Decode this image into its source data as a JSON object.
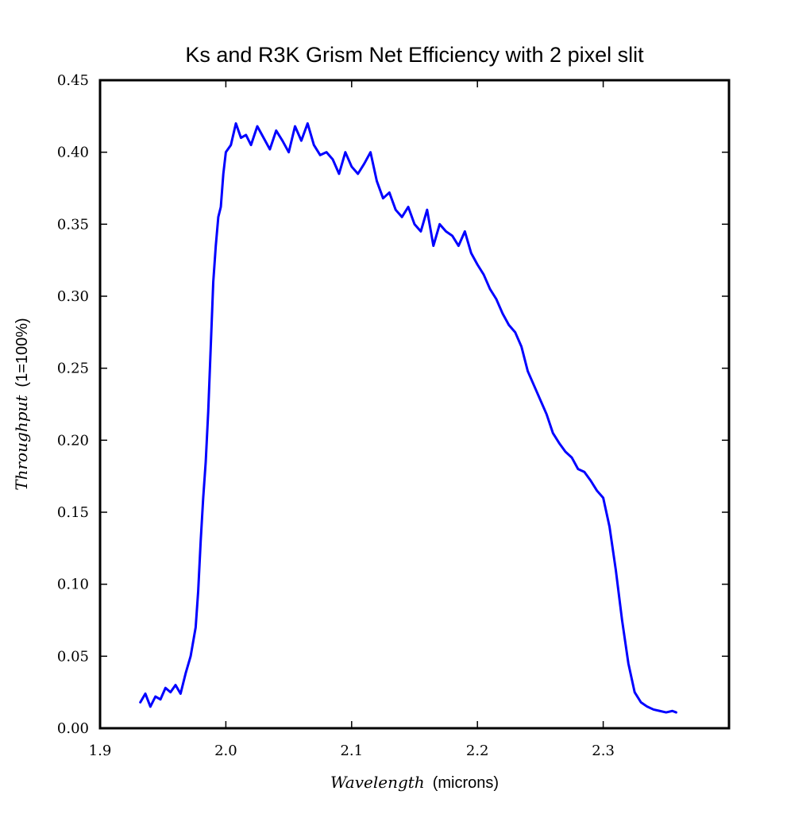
{
  "chart_data": {
    "type": "line",
    "title": "Ks and R3K Grism Net Efficiency with 2 pixel slit",
    "xlabel": {
      "italic": "Wavelength",
      "plain": "(microns)"
    },
    "ylabel": {
      "italic": "Throughput",
      "plain": "(1=100%)"
    },
    "xlim": [
      1.9,
      2.4
    ],
    "ylim": [
      0.0,
      0.45
    ],
    "x_ticks": [
      1.9,
      2.0,
      2.1,
      2.2,
      2.3
    ],
    "x_tick_labels": [
      "1.9",
      "2.0",
      "2.1",
      "2.2",
      "2.3"
    ],
    "y_ticks": [
      0.0,
      0.05,
      0.1,
      0.15,
      0.2,
      0.25,
      0.3,
      0.35,
      0.4,
      0.45
    ],
    "y_tick_labels": [
      "0.00",
      "0.05",
      "0.10",
      "0.15",
      "0.20",
      "0.25",
      "0.30",
      "0.35",
      "0.40",
      "0.45"
    ],
    "grid": false,
    "legend": "none",
    "line_color": "#0000ff",
    "series": [
      {
        "x": [
          1.932,
          1.936,
          1.94,
          1.944,
          1.948,
          1.952,
          1.956,
          1.96,
          1.964,
          1.968,
          1.972,
          1.976,
          1.978,
          1.98,
          1.982,
          1.984,
          1.986,
          1.988,
          1.99,
          1.992,
          1.994,
          1.996,
          1.998,
          2.0,
          2.004,
          2.008,
          2.012,
          2.016,
          2.02,
          2.025,
          2.03,
          2.035,
          2.04,
          2.045,
          2.05,
          2.055,
          2.06,
          2.065,
          2.07,
          2.075,
          2.08,
          2.085,
          2.09,
          2.095,
          2.1,
          2.105,
          2.11,
          2.115,
          2.12,
          2.125,
          2.13,
          2.135,
          2.14,
          2.145,
          2.15,
          2.155,
          2.16,
          2.165,
          2.17,
          2.175,
          2.18,
          2.185,
          2.19,
          2.195,
          2.2,
          2.205,
          2.21,
          2.215,
          2.22,
          2.225,
          2.23,
          2.235,
          2.24,
          2.245,
          2.25,
          2.255,
          2.26,
          2.265,
          2.27,
          2.275,
          2.28,
          2.285,
          2.29,
          2.295,
          2.3,
          2.305,
          2.31,
          2.315,
          2.32,
          2.325,
          2.33,
          2.335,
          2.34,
          2.345,
          2.35,
          2.355,
          2.358
        ],
        "y": [
          0.018,
          0.024,
          0.015,
          0.022,
          0.02,
          0.028,
          0.025,
          0.03,
          0.024,
          0.038,
          0.05,
          0.07,
          0.095,
          0.13,
          0.16,
          0.185,
          0.22,
          0.265,
          0.31,
          0.335,
          0.355,
          0.362,
          0.385,
          0.4,
          0.405,
          0.42,
          0.41,
          0.412,
          0.405,
          0.418,
          0.41,
          0.402,
          0.415,
          0.408,
          0.4,
          0.418,
          0.408,
          0.42,
          0.405,
          0.398,
          0.4,
          0.395,
          0.385,
          0.4,
          0.39,
          0.385,
          0.392,
          0.4,
          0.38,
          0.368,
          0.372,
          0.36,
          0.355,
          0.362,
          0.35,
          0.345,
          0.36,
          0.335,
          0.35,
          0.345,
          0.342,
          0.335,
          0.345,
          0.33,
          0.322,
          0.315,
          0.305,
          0.298,
          0.288,
          0.28,
          0.275,
          0.265,
          0.248,
          0.238,
          0.228,
          0.218,
          0.205,
          0.198,
          0.192,
          0.188,
          0.18,
          0.178,
          0.172,
          0.165,
          0.16,
          0.14,
          0.11,
          0.075,
          0.045,
          0.025,
          0.018,
          0.015,
          0.013,
          0.012,
          0.011,
          0.012,
          0.011
        ]
      }
    ]
  }
}
